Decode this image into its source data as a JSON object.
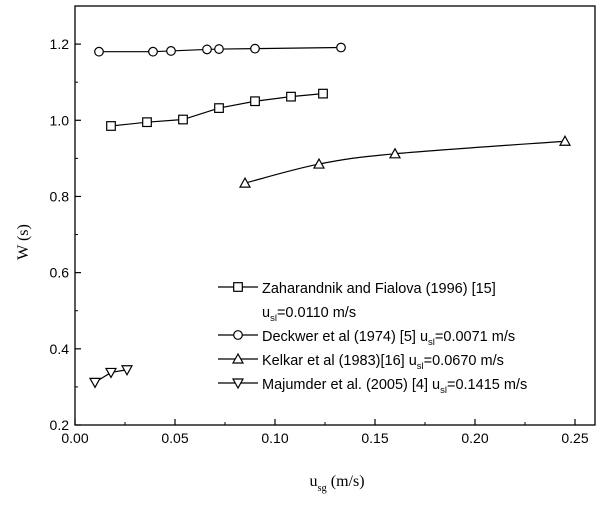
{
  "chart_data": {
    "type": "line",
    "title": "",
    "xlabel": {
      "base": "u",
      "sub": "sg",
      "unit": " (m/s)"
    },
    "ylabel": "W (s)",
    "xlim": [
      0.0,
      0.26
    ],
    "ylim": [
      0.2,
      1.3
    ],
    "xticks": [
      0.0,
      0.05,
      0.1,
      0.15,
      0.2,
      0.25
    ],
    "xtick_labels": [
      "0.00",
      "0.05",
      "0.10",
      "0.15",
      "0.20",
      "0.25"
    ],
    "yticks": [
      0.2,
      0.4,
      0.6,
      0.8,
      1.0,
      1.2
    ],
    "ytick_labels": [
      "0.2",
      "0.4",
      "0.6",
      "0.8",
      "1.0",
      "1.2"
    ],
    "grid": false,
    "legend_position": "bottom-right",
    "series": [
      {
        "name": "Zaharandnik and Fialova (1996) [15]",
        "legend_lines": [
          {
            "text": "Zaharandnik and Fialova (1996) [15]"
          },
          {
            "pre": "u",
            "sub": "sl",
            "post": "=0.0110 m/s"
          }
        ],
        "marker": "square",
        "x": [
          0.018,
          0.036,
          0.054,
          0.072,
          0.09,
          0.108,
          0.124
        ],
        "y": [
          0.985,
          0.995,
          1.002,
          1.032,
          1.05,
          1.062,
          1.07
        ]
      },
      {
        "name": "Deckwer et al (1974) [5] u_sl=0.0071 m/s",
        "legend_lines": [
          {
            "pre": "Deckwer et al (1974) [5] u",
            "sub": "sl",
            "post": "=0.0071 m/s"
          }
        ],
        "marker": "circle",
        "x": [
          0.012,
          0.039,
          0.048,
          0.066,
          0.072,
          0.09,
          0.133
        ],
        "y": [
          1.18,
          1.18,
          1.182,
          1.186,
          1.187,
          1.188,
          1.191
        ]
      },
      {
        "name": "Kelkar et al (1983)[16] u_sl=0.0670 m/s",
        "legend_lines": [
          {
            "pre": "Kelkar et al (1983)[16] u",
            "sub": "sl",
            "post": "=0.0670 m/s"
          }
        ],
        "marker": "triangle-up",
        "x": [
          0.085,
          0.122,
          0.16,
          0.245
        ],
        "y": [
          0.835,
          0.885,
          0.912,
          0.945
        ]
      },
      {
        "name": "Majumder et al. (2005) [4] u_sl=0.1415 m/s",
        "legend_lines": [
          {
            "pre": "Majumder et al. (2005) [4] u",
            "sub": "sl",
            "post": "=0.1415 m/s"
          }
        ],
        "marker": "triangle-down",
        "x": [
          0.01,
          0.018,
          0.026
        ],
        "y": [
          0.312,
          0.338,
          0.345
        ]
      }
    ]
  }
}
